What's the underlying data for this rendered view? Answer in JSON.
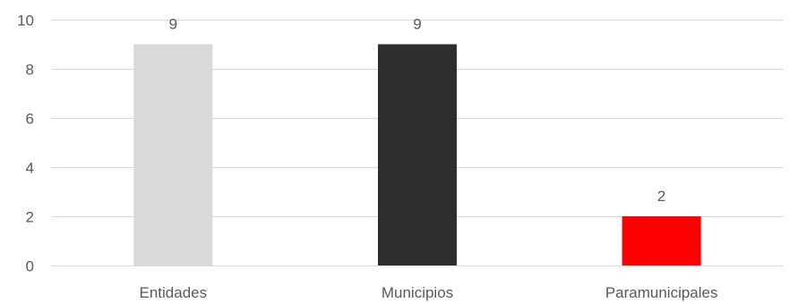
{
  "chart_data": {
    "type": "bar",
    "title": "",
    "xlabel": "",
    "ylabel": "",
    "categories": [
      "Entidades",
      "Municipios",
      "Paramunicipales"
    ],
    "values": [
      9,
      9,
      2
    ],
    "data_labels": [
      "9",
      "9",
      "2"
    ],
    "bar_colors": [
      "#d9d9d9",
      "#2e2e2e",
      "#ff0000"
    ],
    "ylim": [
      0,
      10
    ],
    "yticks": [
      0,
      2,
      4,
      6,
      8,
      10
    ],
    "ytick_labels": [
      "0",
      "2",
      "4",
      "6",
      "8",
      "10"
    ],
    "grid": true,
    "legend": "none"
  }
}
